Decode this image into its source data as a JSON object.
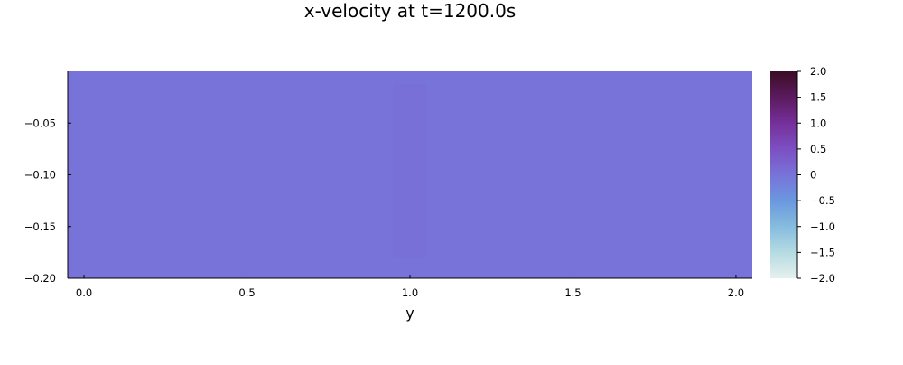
{
  "chart_data": {
    "type": "heatmap",
    "title": "x-velocity at t=1200.0s",
    "xlabel": "y",
    "ylabel": "",
    "xlim": [
      -0.05,
      2.05
    ],
    "ylim": [
      -0.2,
      -0.0
    ],
    "x_ticks": [
      {
        "value": 0.0,
        "label": "0.0"
      },
      {
        "value": 0.5,
        "label": "0.5"
      },
      {
        "value": 1.0,
        "label": "1.0"
      },
      {
        "value": 1.5,
        "label": "1.5"
      },
      {
        "value": 2.0,
        "label": "2.0"
      }
    ],
    "y_ticks": [
      {
        "value": -0.05,
        "label": "−0.05"
      },
      {
        "value": -0.1,
        "label": "−0.10"
      },
      {
        "value": -0.15,
        "label": "−0.15"
      },
      {
        "value": -0.2,
        "label": "−0.20"
      }
    ],
    "background_value": 0.0,
    "cells": [
      {
        "x0": 0.95,
        "x1": 1.05,
        "y0": -0.18,
        "y1": -0.0125,
        "value": 0.05
      }
    ],
    "colorbar": {
      "range": [
        -2.0,
        2.0
      ],
      "ticks": [
        {
          "value": 2.0,
          "label": "2.0"
        },
        {
          "value": 1.5,
          "label": "1.5"
        },
        {
          "value": 1.0,
          "label": "1.0"
        },
        {
          "value": 0.5,
          "label": "0.5"
        },
        {
          "value": 0.0,
          "label": "0"
        },
        {
          "value": -0.5,
          "label": "−0.5"
        },
        {
          "value": -1.0,
          "label": "−1.0"
        },
        {
          "value": -1.5,
          "label": "−1.5"
        },
        {
          "value": -2.0,
          "label": "−2.0"
        }
      ],
      "stops": [
        {
          "value": -2.0,
          "color": "#e5f0ef"
        },
        {
          "value": -1.5,
          "color": "#b5dbe2"
        },
        {
          "value": -1.0,
          "color": "#86bcde"
        },
        {
          "value": -0.5,
          "color": "#6a98df"
        },
        {
          "value": 0.0,
          "color": "#7873d9"
        },
        {
          "value": 0.5,
          "color": "#7c4fc2"
        },
        {
          "value": 1.0,
          "color": "#75309a"
        },
        {
          "value": 1.5,
          "color": "#5b1a5e"
        },
        {
          "value": 2.0,
          "color": "#3a0e24"
        }
      ]
    },
    "grid": false,
    "legend": "none"
  }
}
